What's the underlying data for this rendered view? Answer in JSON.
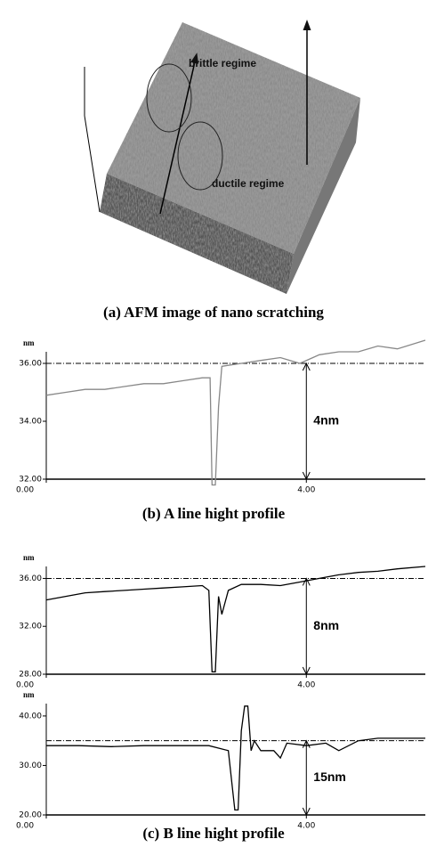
{
  "afm_image": {
    "labels": [
      "brittle regime",
      "ductile regime"
    ]
  },
  "captions": [
    "(a) AFM image of nano scratching",
    "(b) A line hight profile",
    "(c) B line hight profile"
  ],
  "chart_data": [
    {
      "type": "line",
      "y_unit": "nm",
      "color": "#888888",
      "x": [
        0,
        0.3,
        0.6,
        0.9,
        1.2,
        1.5,
        1.8,
        2.1,
        2.4,
        2.52,
        2.55,
        2.6,
        2.65,
        2.7,
        3.0,
        3.3,
        3.6,
        3.9,
        4.2,
        4.5,
        4.8,
        5.1,
        5.4,
        5.83
      ],
      "values": [
        34.9,
        35.0,
        35.1,
        35.1,
        35.2,
        35.3,
        35.3,
        35.4,
        35.5,
        35.5,
        31.8,
        31.8,
        34.5,
        35.9,
        36.0,
        36.1,
        36.2,
        36.0,
        36.3,
        36.4,
        36.4,
        36.6,
        36.5,
        36.8
      ],
      "xlim": [
        0,
        5.83
      ],
      "ylim": [
        32,
        36.4
      ],
      "xticks": [
        {
          "value": 0,
          "label": "0.00"
        },
        {
          "value": 4,
          "label": "4.00"
        }
      ],
      "yticks": [
        {
          "value": 36,
          "label": "36.00"
        },
        {
          "value": 34,
          "label": "34.00"
        },
        {
          "value": 32,
          "label": "32.00"
        }
      ],
      "reference_line": 36,
      "annotation": "4nm",
      "annotation_x": 4
    },
    {
      "type": "line",
      "y_unit": "nm",
      "color": "#000000",
      "x": [
        0,
        0.3,
        0.6,
        0.9,
        1.2,
        1.5,
        1.8,
        2.1,
        2.4,
        2.5,
        2.55,
        2.6,
        2.65,
        2.7,
        2.8,
        3.0,
        3.3,
        3.6,
        3.9,
        4.2,
        4.5,
        4.8,
        5.1,
        5.4,
        5.83
      ],
      "values": [
        34.2,
        34.5,
        34.8,
        34.9,
        35.0,
        35.1,
        35.2,
        35.3,
        35.4,
        35.0,
        28.2,
        28.2,
        34.5,
        33.0,
        35.0,
        35.5,
        35.5,
        35.4,
        35.7,
        36.0,
        36.3,
        36.5,
        36.6,
        36.8,
        37.0
      ],
      "xlim": [
        0,
        5.83
      ],
      "ylim": [
        28,
        37
      ],
      "xticks": [
        {
          "value": 0,
          "label": "0.00"
        },
        {
          "value": 4,
          "label": "4.00"
        }
      ],
      "yticks": [
        {
          "value": 36,
          "label": "36.00"
        },
        {
          "value": 32,
          "label": "32.00"
        },
        {
          "value": 28,
          "label": "28.00"
        }
      ],
      "reference_line": 36,
      "annotation": "8nm",
      "annotation_x": 4
    },
    {
      "type": "line",
      "y_unit": "nm",
      "color": "#000000",
      "x": [
        0,
        0.5,
        1.0,
        1.5,
        2.0,
        2.5,
        2.8,
        2.9,
        2.95,
        3.0,
        3.05,
        3.1,
        3.15,
        3.2,
        3.3,
        3.5,
        3.6,
        3.7,
        4.0,
        4.3,
        4.5,
        4.8,
        5.1,
        5.4,
        5.83
      ],
      "values": [
        34.0,
        34.0,
        33.8,
        34.0,
        34.0,
        34.0,
        33.0,
        21.0,
        21.0,
        37.0,
        42.0,
        42.0,
        33.0,
        35.0,
        33.0,
        33.0,
        31.5,
        34.5,
        34.0,
        34.5,
        33.0,
        35.0,
        35.5,
        35.5,
        35.5
      ],
      "xlim": [
        0,
        5.83
      ],
      "ylim": [
        20,
        42.5
      ],
      "xticks": [
        {
          "value": 0,
          "label": "0.00"
        },
        {
          "value": 4,
          "label": "4.00"
        }
      ],
      "yticks": [
        {
          "value": 40,
          "label": "40.00"
        },
        {
          "value": 30,
          "label": "30.00"
        },
        {
          "value": 20,
          "label": "20.00"
        }
      ],
      "reference_line": 35,
      "annotation": "15nm",
      "annotation_x": 4
    }
  ]
}
